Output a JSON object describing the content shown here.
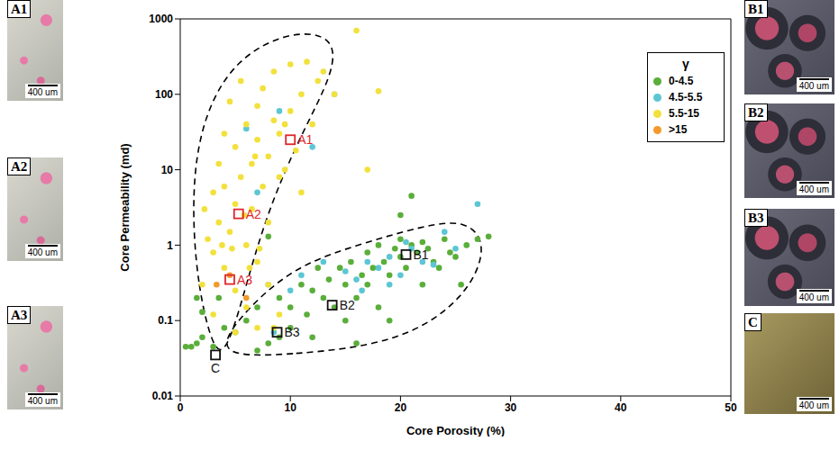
{
  "chart_data": {
    "type": "scatter",
    "xlabel": "Core Porosity (%)",
    "ylabel": "Core Permeability (md)",
    "xlim": [
      0,
      50
    ],
    "xticks": [
      0,
      10,
      20,
      30,
      40,
      50
    ],
    "ylim": [
      0.01,
      1000
    ],
    "yticks": [
      0.01,
      0.1,
      1,
      10,
      100,
      1000
    ],
    "log": "y",
    "legend": "upper right",
    "legend_title": "γ",
    "marker": "circle",
    "series": [
      {
        "name": "0-4.5",
        "color": "#5aae3a",
        "x": [
          0.5,
          1,
          1.5,
          2,
          3,
          4,
          5,
          6,
          7,
          8,
          9,
          10,
          10,
          11,
          11.5,
          12,
          12.5,
          13,
          13.5,
          14,
          14.5,
          15,
          15,
          15.5,
          16,
          16.5,
          17,
          17,
          17.5,
          18,
          18,
          18.5,
          19,
          19.5,
          20,
          20,
          20.5,
          21,
          21,
          21.5,
          22,
          22,
          22.5,
          23,
          23.5,
          24,
          24.5,
          25,
          25.5,
          26,
          27,
          28,
          20,
          12,
          16,
          19,
          9,
          7,
          2,
          3.5,
          8,
          1.5
        ],
        "values": [
          0.045,
          0.045,
          0.05,
          0.13,
          0.045,
          0.08,
          0.07,
          0.1,
          0.15,
          0.05,
          0.2,
          0.15,
          0.08,
          0.3,
          0.12,
          0.25,
          0.5,
          0.2,
          0.35,
          0.15,
          0.5,
          0.3,
          0.1,
          0.6,
          0.2,
          0.4,
          0.8,
          0.3,
          0.5,
          0.15,
          1,
          0.6,
          0.4,
          0.9,
          0.7,
          1.2,
          0.5,
          1,
          4.5,
          0.8,
          0.3,
          1.1,
          0.9,
          0.6,
          0.5,
          1.2,
          0.8,
          0.7,
          0.3,
          1,
          1.2,
          1.3,
          2.5,
          0.06,
          0.05,
          0.1,
          0.06,
          0.04,
          0.06,
          0.2,
          1.3,
          0.2
        ]
      },
      {
        "name": "4.5-5.5",
        "color": "#5cc6d4",
        "x": [
          8,
          11,
          13,
          15,
          16,
          17,
          18,
          19,
          20,
          21,
          22,
          23,
          24,
          25,
          27,
          14,
          12,
          9,
          6,
          7,
          8.5,
          10,
          19,
          20.5,
          16.5
        ],
        "values": [
          0.3,
          0.4,
          0.6,
          0.45,
          0.35,
          0.6,
          0.5,
          0.7,
          0.4,
          0.9,
          0.6,
          0.55,
          1.5,
          0.9,
          3.5,
          100,
          20,
          60,
          35,
          5,
          0.07,
          0.25,
          0.3,
          1.1,
          0.25
        ]
      },
      {
        "name": "5.5-15",
        "color": "#f2e13c",
        "x": [
          2,
          2.5,
          3,
          3,
          3.5,
          3.5,
          4,
          4,
          4,
          4.5,
          4.5,
          5,
          5,
          5,
          5.5,
          5.5,
          6,
          6,
          6,
          6.5,
          6.5,
          7,
          7,
          7,
          7.5,
          7.5,
          8,
          8,
          8,
          8.5,
          8.5,
          9,
          9,
          9,
          9.5,
          10,
          10,
          10.5,
          11,
          11,
          11.5,
          12,
          12.5,
          13,
          14,
          16,
          17,
          18,
          3,
          5,
          7,
          8.5,
          2.2,
          6.3,
          7.2,
          4.7,
          5.8,
          6.8,
          9.5,
          3.8
        ],
        "values": [
          0.3,
          1.2,
          5,
          0.8,
          12,
          2,
          30,
          0.5,
          6,
          80,
          1.5,
          20,
          3.5,
          0.25,
          150,
          8,
          40,
          1,
          0.15,
          12,
          3,
          70,
          25,
          0.6,
          6,
          120,
          15,
          2,
          0.3,
          45,
          200,
          30,
          8,
          0.12,
          10,
          60,
          250,
          18,
          100,
          5,
          270,
          40,
          150,
          200,
          100,
          700,
          10,
          110,
          0.12,
          0.07,
          0.08,
          0.08,
          3,
          0.5,
          0.9,
          0.9,
          2.5,
          15,
          40,
          1
        ]
      },
      {
        "name": ">15",
        "color": "#f39a2a",
        "x": [
          4.5,
          3.3,
          6
        ],
        "values": [
          0.4,
          0.3,
          0.2
        ]
      }
    ],
    "annotations": [
      {
        "label": "A1",
        "x": 10,
        "y": 25,
        "color": "#e0262b"
      },
      {
        "label": "A2",
        "x": 5.3,
        "y": 2.6,
        "color": "#e0262b"
      },
      {
        "label": "A3",
        "x": 4.5,
        "y": 0.35,
        "color": "#e0262b"
      },
      {
        "label": "B1",
        "x": 20.5,
        "y": 0.75,
        "color": "#111111"
      },
      {
        "label": "B2",
        "x": 13.8,
        "y": 0.16,
        "color": "#111111"
      },
      {
        "label": "B3",
        "x": 8.8,
        "y": 0.07,
        "color": "#111111"
      },
      {
        "label": "C",
        "x": 3.2,
        "y": 0.035,
        "color": "#111111"
      }
    ],
    "envelopes": [
      {
        "x": [
          3.2,
          1.5,
          1,
          2,
          5,
          10,
          14,
          14,
          11,
          8,
          6,
          4.5
        ],
        "y": [
          0.03,
          0.3,
          5,
          50,
          300,
          700,
          600,
          200,
          30,
          3,
          0.3,
          0.05
        ],
        "line_style": "dashed"
      },
      {
        "x": [
          3.2,
          10,
          20,
          26,
          28,
          26,
          22,
          16,
          10,
          5
        ],
        "y": [
          0.033,
          0.035,
          0.05,
          0.2,
          1,
          2.2,
          1.8,
          1,
          0.5,
          0.1
        ],
        "line_style": "dashed"
      }
    ]
  },
  "panels": [
    {
      "label": "A1",
      "scale_bar": "400 um"
    },
    {
      "label": "A2",
      "scale_bar": "400 um"
    },
    {
      "label": "A3",
      "scale_bar": "400 um"
    },
    {
      "label": "B1",
      "scale_bar": "400 um"
    },
    {
      "label": "B2",
      "scale_bar": "400 um"
    },
    {
      "label": "B3",
      "scale_bar": "400 um"
    },
    {
      "label": "C",
      "scale_bar": "400 um"
    }
  ]
}
